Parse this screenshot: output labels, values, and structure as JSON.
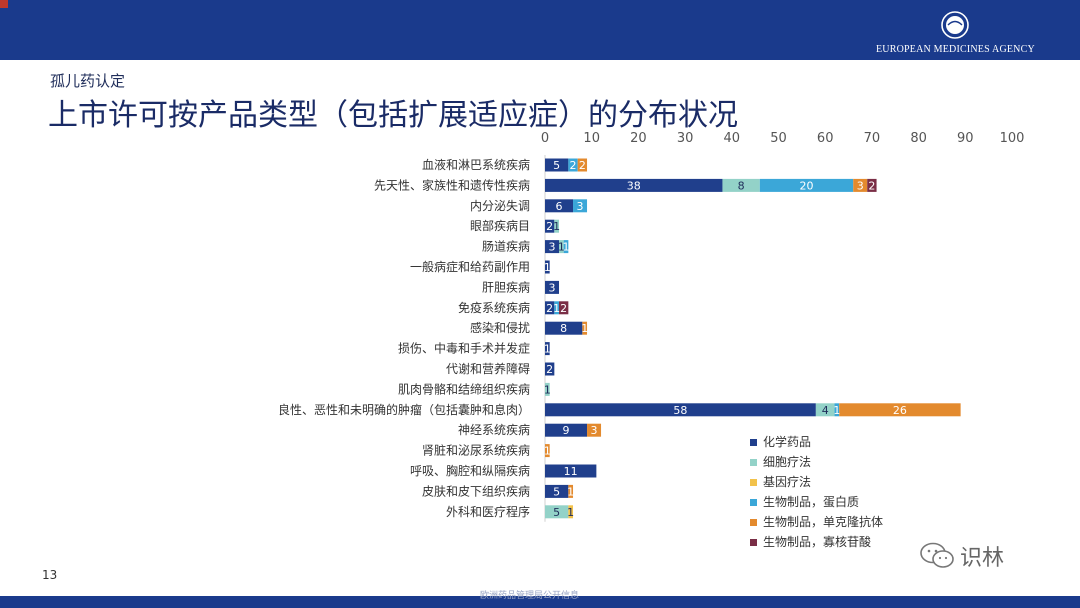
{
  "header": {
    "agency_name": "EUROPEAN MEDICINES AGENCY",
    "subtitle": "孤儿药认定",
    "title": "上市许可按产品类型（包括扩展适应症）的分布状况"
  },
  "footer": {
    "page_number": "13",
    "watermark_text": "识林",
    "bottom_text": "欧洲药品管理局公开信息"
  },
  "colors": {
    "header_bar": "#1a3a8c",
    "s1": "#203f8c",
    "s2": "#93d2c8",
    "s3": "#f2c24b",
    "s4": "#3ba7d8",
    "s5": "#e38a2e",
    "s6": "#7a2e46"
  },
  "chart_data": {
    "type": "bar",
    "orientation": "horizontal",
    "stacked": true,
    "title": "",
    "xlabel": "",
    "ylabel": "",
    "xlim": [
      0,
      100
    ],
    "xticks": [
      0,
      10,
      20,
      30,
      40,
      50,
      60,
      70,
      80,
      90,
      100
    ],
    "x_axis_position": "top",
    "grid": false,
    "legend_position": "bottom-right",
    "categories": [
      "血液和淋巴系统疾病",
      "先天性、家族性和遗传性疾病",
      "内分泌失调",
      "眼部疾病目",
      "肠道疾病",
      "一般病症和给药副作用",
      "肝胆疾病",
      "免疫系统疾病",
      "感染和侵扰",
      "损伤、中毒和手术并发症",
      "代谢和营养障碍",
      "肌肉骨骼和结缔组织疾病",
      "良性、恶性和未明确的肿瘤（包括囊肿和息肉）",
      "神经系统疾病",
      "肾脏和泌尿系统疾病",
      "呼吸、胸腔和纵隔疾病",
      "皮肤和皮下组织疾病",
      "外科和医疗程序"
    ],
    "series": [
      {
        "name": "化学药品",
        "color": "#203f8c",
        "values": [
          5,
          38,
          6,
          2,
          3,
          1,
          3,
          2,
          8,
          1,
          2,
          0,
          58,
          9,
          0,
          11,
          5,
          0
        ]
      },
      {
        "name": "细胞疗法",
        "color": "#93d2c8",
        "values": [
          0,
          8,
          0,
          1,
          1,
          0,
          0,
          0,
          0,
          0,
          0,
          1,
          4,
          0,
          0,
          0,
          0,
          5
        ]
      },
      {
        "name": "基因疗法",
        "color": "#f2c24b",
        "values": [
          0,
          0,
          0,
          0,
          0,
          0,
          0,
          0,
          0,
          0,
          0,
          0,
          0,
          0,
          0,
          0,
          0,
          1
        ]
      },
      {
        "name": "生物制品，蛋白质",
        "color": "#3ba7d8",
        "values": [
          2,
          20,
          3,
          0,
          1,
          0,
          0,
          1,
          0,
          0,
          0,
          0,
          1,
          0,
          0,
          0,
          0,
          0
        ]
      },
      {
        "name": "生物制品，单克隆抗体",
        "color": "#e38a2e",
        "values": [
          2,
          3,
          0,
          0,
          0,
          0,
          0,
          0,
          1,
          0,
          0,
          0,
          26,
          3,
          1,
          0,
          1,
          0
        ]
      },
      {
        "name": "生物制品，寡核苷酸",
        "color": "#7a2e46",
        "values": [
          0,
          2,
          0,
          0,
          0,
          0,
          0,
          2,
          0,
          0,
          0,
          0,
          0,
          0,
          0,
          0,
          0,
          0
        ]
      }
    ]
  }
}
